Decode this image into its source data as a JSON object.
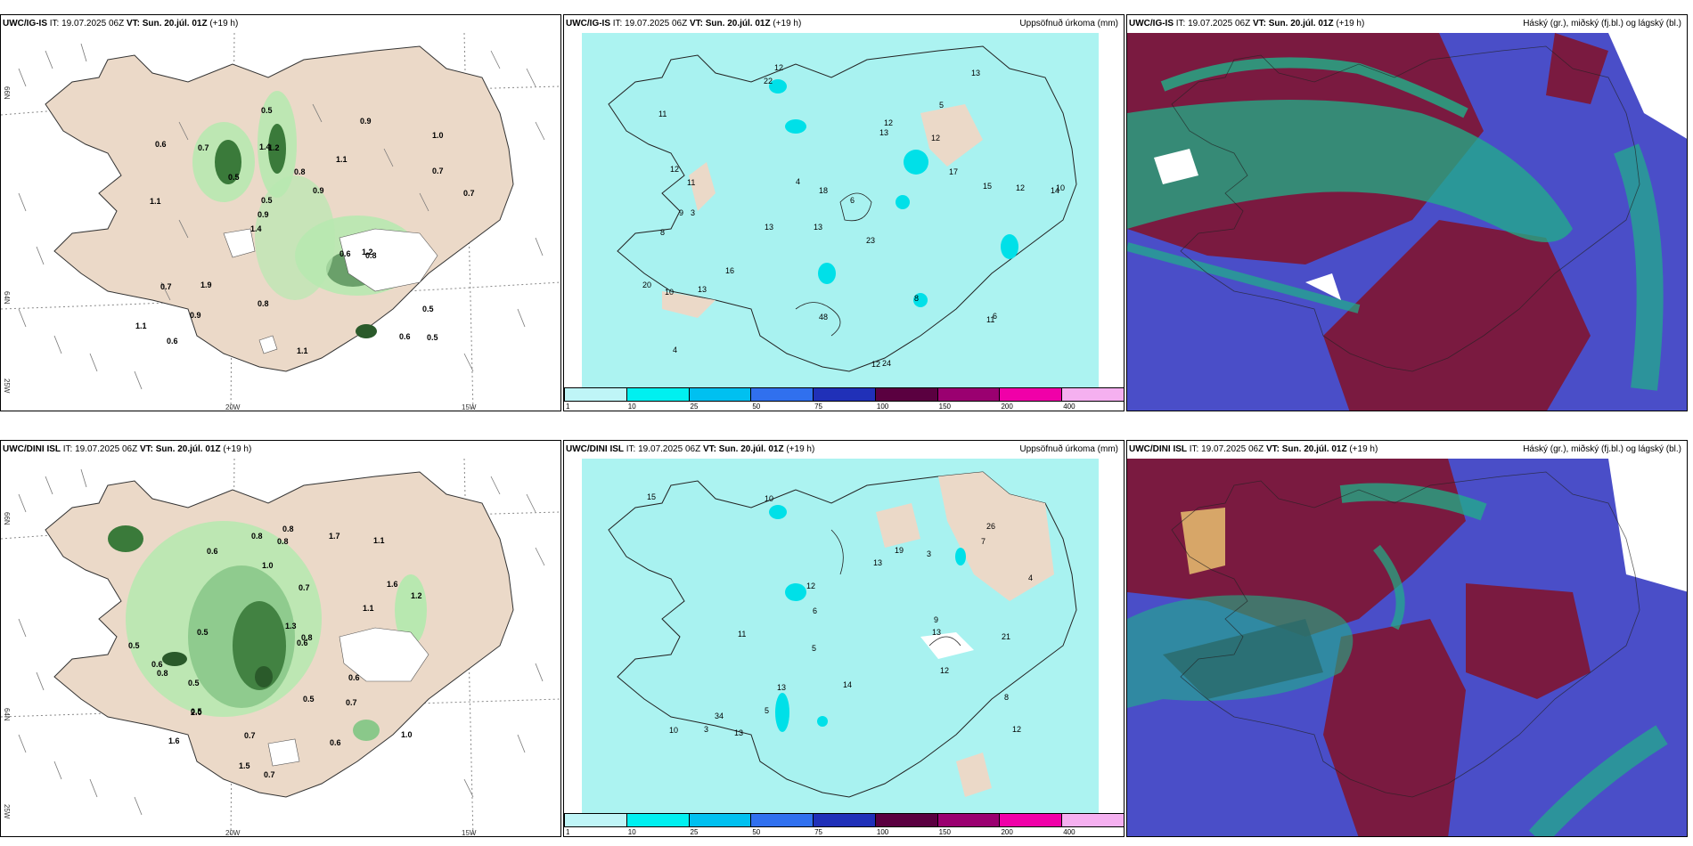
{
  "top_row": {
    "wind_panel": {
      "model": "UWC/IG-IS",
      "it_label": "IT:",
      "it_value": "19.07.2025 06Z",
      "vt_label": "VT:",
      "vt_value": "Sun. 20.júl. 01Z",
      "lead": "(+19 h)",
      "axis_lat1": "66N",
      "axis_lat2": "64N",
      "axis_lat3": "25W",
      "axis_lon1": "20W",
      "axis_lon2": "15W",
      "values": [
        "0.5",
        "1.1",
        "1.0",
        "1.4",
        "1.1",
        "0.6",
        "1.4",
        "0.8",
        "0.7",
        "0.5",
        "1.1",
        "0.9",
        "1.2",
        "0.9",
        "0.8",
        "0.6",
        "0.5",
        "0.7",
        "0.6",
        "0.7",
        "0.9",
        "0.8",
        "0.5",
        "0.7",
        "0.9",
        "1.9",
        "0.6",
        "0.5",
        "1.2",
        "1.1"
      ]
    },
    "precip_panel": {
      "model": "UWC/IG-IS",
      "it_label": "IT:",
      "it_value": "19.07.2025 06Z",
      "vt_label": "VT:",
      "vt_value": "Sun. 20.júl. 01Z",
      "lead": "(+19 h)",
      "title_right": "Uppsöfnuð úrkoma (mm)",
      "values": [
        "12",
        "5",
        "14",
        "13",
        "23",
        "3",
        "11",
        "12",
        "8",
        "13",
        "6",
        "4",
        "22",
        "13",
        "12",
        "24",
        "48",
        "13",
        "17",
        "16",
        "11",
        "9",
        "10",
        "12",
        "20",
        "12",
        "18",
        "15",
        "6",
        "10",
        "11",
        "12",
        "13",
        "4",
        "8"
      ]
    },
    "cloud_panel": {
      "model": "UWC/IG-IS",
      "it_label": "IT:",
      "it_value": "19.07.2025 06Z",
      "vt_label": "VT:",
      "vt_value": "Sun. 20.júl. 01Z",
      "lead": "(+19 h)",
      "title_right": "Háský (gr.), miðský (fj.bl.) og lágský (bl.)"
    }
  },
  "bottom_row": {
    "wind_panel": {
      "model": "UWC/DINI ISL",
      "it_label": "IT:",
      "it_value": "19.07.2025 06Z",
      "vt_label": "VT:",
      "vt_value": "Sun. 20.júl. 01Z",
      "lead": "(+19 h)",
      "axis_lat1": "66N",
      "axis_lat2": "64N",
      "axis_lat3": "25W",
      "axis_lon1": "20W",
      "axis_lon2": "15W",
      "values": [
        "1.6",
        "1.1",
        "0.6",
        "1.6",
        "0.5",
        "0.5",
        "0.5",
        "0.5",
        "1.2",
        "1.1",
        "0.6",
        "0.8",
        "0.7",
        "0.6",
        "0.7",
        "0.8",
        "1.0",
        "0.5",
        "2.0",
        "1.5",
        "0.6",
        "0.8",
        "1.0",
        "0.8",
        "1.3",
        "0.7",
        "0.8",
        "1.7",
        "0.7",
        "0.6"
      ]
    },
    "precip_panel": {
      "model": "UWC/DINI ISL",
      "it_label": "IT:",
      "it_value": "19.07.2025 06Z",
      "vt_label": "VT:",
      "vt_value": "Sun. 20.júl. 01Z",
      "lead": "(+19 h)",
      "title_right": "Uppsöfnuð úrkoma (mm)",
      "values": [
        "10",
        "12",
        "19",
        "13",
        "12",
        "7",
        "10",
        "14",
        "13",
        "13",
        "21",
        "34",
        "26",
        "13",
        "15",
        "12",
        "11",
        "6",
        "5",
        "4",
        "3",
        "8",
        "9",
        "3",
        "5"
      ]
    },
    "cloud_panel": {
      "model": "UWC/DINI ISL",
      "it_label": "IT:",
      "it_value": "19.07.2025 06Z",
      "vt_label": "VT:",
      "vt_value": "Sun. 20.júl. 01Z",
      "lead": "(+19 h)",
      "title_right": "Háský (gr.), miðský (fj.bl.) og lágský (bl.)"
    }
  },
  "precip_legend": {
    "ticks": [
      "1",
      "10",
      "25",
      "50",
      "75",
      "100",
      "150",
      "200",
      "400"
    ],
    "colors": [
      "#bff5f7",
      "#00f0f0",
      "#00c0f0",
      "#3070ee",
      "#2030b8",
      "#5a0040",
      "#9a0070",
      "#f000a8",
      "#f5b0f0"
    ]
  },
  "colors": {
    "land": "#ebd9c8",
    "precip_light": "#a8f2f0",
    "wind_green": "#b8e8b0",
    "cloud_high": "#7a1a40",
    "cloud_mid": "#4a4ec8",
    "cloud_low": "#20b088"
  }
}
